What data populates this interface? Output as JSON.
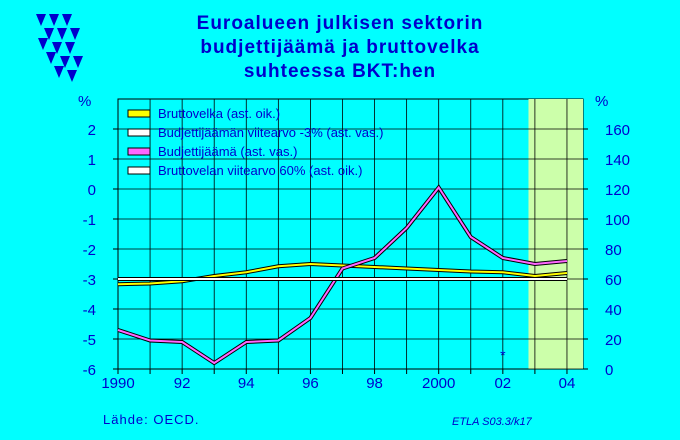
{
  "title_lines": [
    "Euroalueen julkisen sektorin",
    "budjettijäämä ja bruttovelka",
    "suhteessa BKT:hen"
  ],
  "source": "Lähde:   OECD.",
  "code": "ETLA S03.3/k17",
  "colors": {
    "background": "#00ffff",
    "text": "#0000cc",
    "forecast_band": "#ccffaa",
    "debt": "#ffff00",
    "balance": "#ff66ff",
    "reference": "#ffffff"
  },
  "logo_icon": "etla-triangles-logo-icon",
  "chart_data": {
    "type": "line",
    "x": [
      1990,
      1991,
      1992,
      1993,
      1994,
      1995,
      1996,
      1997,
      1998,
      1999,
      2000,
      2001,
      2002,
      2003,
      2004
    ],
    "x_ticks": [
      "1990",
      "92",
      "94",
      "96",
      "98",
      "2000",
      "02",
      "04"
    ],
    "xlim": [
      1990,
      2004.5
    ],
    "left_axis": {
      "unit": "%",
      "ylim": [
        -6,
        3
      ],
      "ticks": [
        "-6",
        "-5",
        "-4",
        "-3",
        "-2",
        "-1",
        "0",
        "1",
        "2"
      ]
    },
    "right_axis": {
      "unit": "%",
      "ylim": [
        0,
        180
      ],
      "ticks": [
        "0",
        "20",
        "40",
        "60",
        "80",
        "100",
        "120",
        "140",
        "160"
      ]
    },
    "forecast_start": 2002.8,
    "series": [
      {
        "name": "Bruttovelka (ast. oik.)",
        "axis": "right",
        "color": "#ffff00",
        "values": [
          56.5,
          57,
          58.5,
          62,
          64.5,
          68.5,
          70,
          69,
          68,
          67,
          66,
          65,
          64.5,
          62,
          64
        ]
      },
      {
        "name": "Budjettijäämän viitearvo -3% (ast. vas.)",
        "axis": "left",
        "color": "#ffffff",
        "values": [
          -3,
          -3,
          -3,
          -3,
          -3,
          -3,
          -3,
          -3,
          -3,
          -3,
          -3,
          -3,
          -3,
          -3,
          -3
        ]
      },
      {
        "name": "Budjettijäämä (ast. vas.)",
        "axis": "left",
        "color": "#ff66ff",
        "values": [
          -4.7,
          -5.05,
          -5.1,
          -5.8,
          -5.1,
          -5.05,
          -4.3,
          -2.65,
          -2.3,
          -1.3,
          0.05,
          -1.6,
          -2.3,
          -2.5,
          -2.4
        ]
      },
      {
        "name": "Bruttovelan viitearvo 60% (ast. oik.)",
        "axis": "right",
        "color": "#ffffff",
        "values": [
          60,
          60,
          60,
          60,
          60,
          60,
          60,
          60,
          60,
          60,
          60,
          60,
          60,
          60,
          60
        ]
      }
    ],
    "annotations": [
      {
        "text": "*",
        "x": 2002.0,
        "y": -5.5,
        "axis": "left"
      }
    ],
    "grid": true,
    "legend": "top-left"
  }
}
